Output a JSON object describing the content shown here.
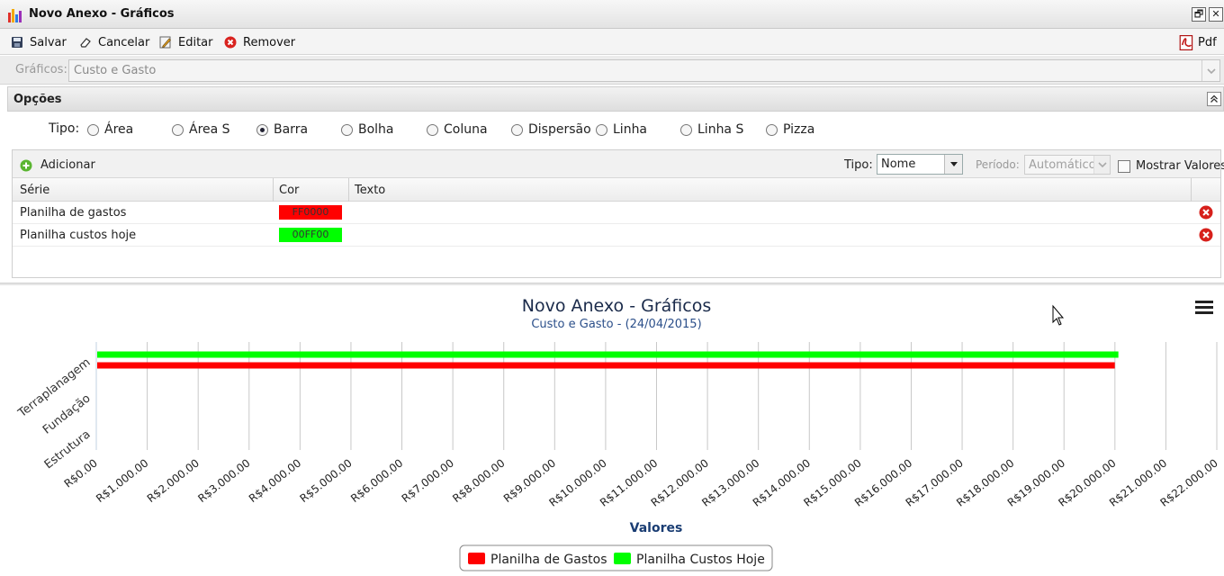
{
  "window": {
    "title": "Novo Anexo - Gráficos",
    "restore_glyph": "🗗",
    "close_glyph": "✕"
  },
  "toolbar": {
    "save_label": "Salvar",
    "cancel_label": "Cancelar",
    "edit_label": "Editar",
    "remove_label": "Remover",
    "pdf_label": "Pdf"
  },
  "graficos": {
    "label": "Gráficos:",
    "value": "Custo e Gasto"
  },
  "opcoes": {
    "title": "Opções",
    "tipo_label": "Tipo:",
    "types": [
      {
        "label": "Área",
        "selected": false
      },
      {
        "label": "Área S",
        "selected": false
      },
      {
        "label": "Barra",
        "selected": true
      },
      {
        "label": "Bolha",
        "selected": false
      },
      {
        "label": "Coluna",
        "selected": false
      },
      {
        "label": "Dispersão",
        "selected": false
      },
      {
        "label": "Linha",
        "selected": false
      },
      {
        "label": "Linha S",
        "selected": false
      },
      {
        "label": "Pizza",
        "selected": false
      }
    ]
  },
  "series_panel": {
    "add_label": "Adicionar",
    "tipo_label": "Tipo:",
    "tipo_value": "Nome",
    "periodo_label": "Período:",
    "periodo_value": "Automático",
    "mostrar_label": "Mostrar Valores",
    "columns": [
      "Série",
      "Cor",
      "Texto"
    ],
    "rows": [
      {
        "serie": "Planilha de gastos",
        "cor": "FF0000",
        "texto": "",
        "color": "#ff0000"
      },
      {
        "serie": "Planilha custos hoje",
        "cor": "00FF00",
        "texto": "",
        "color": "#00ff00"
      }
    ]
  },
  "chart_data": {
    "type": "bar",
    "orientation": "horizontal",
    "title": "Novo Anexo - Gráficos",
    "subtitle": "Custo e Gasto - (24/04/2015)",
    "xlabel": "Valores",
    "categories": [
      "Terraplanagem",
      "Fundação",
      "Estrutura"
    ],
    "xlim": [
      0,
      22000
    ],
    "x_ticks": [
      "R$0.00",
      "R$1.000.00",
      "R$2.000.00",
      "R$3.000.00",
      "R$4.000.00",
      "R$5.000.00",
      "R$6.000.00",
      "R$7.000.00",
      "R$8.000.00",
      "R$9.000.00",
      "R$10.000.00",
      "R$11.000.00",
      "R$12.000.00",
      "R$13.000.00",
      "R$14.000.00",
      "R$15.000.00",
      "R$16.000.00",
      "R$17.000.00",
      "R$18.000.00",
      "R$19.000.00",
      "R$20.000.00",
      "R$21.000.00",
      "R$22.000.00"
    ],
    "series": [
      {
        "name": "Planilha de Gastos",
        "color": "#ff0000",
        "values": [
          19980,
          0,
          0
        ]
      },
      {
        "name": "Planilha Custos Hoje",
        "color": "#00ff00",
        "values": [
          20050,
          0,
          0
        ]
      }
    ],
    "grid": true,
    "legend_position": "bottom-center"
  }
}
